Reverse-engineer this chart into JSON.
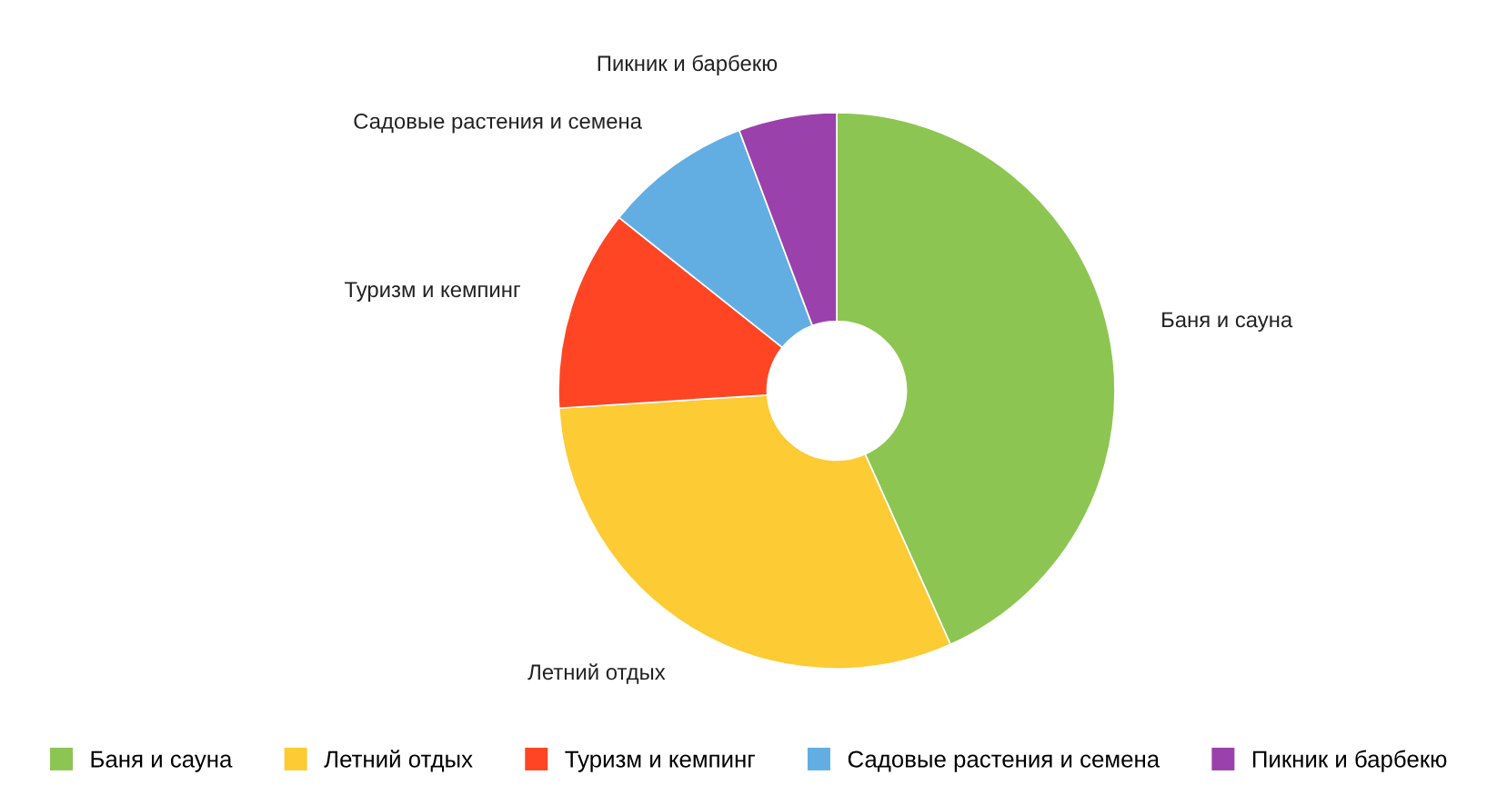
{
  "chart_data": {
    "type": "donut",
    "categories": [
      "Баня и сауна",
      "Летний отдых",
      "Туризм и кемпинг",
      "Садовые растения и семена",
      "Пикник и барбекю"
    ],
    "values": [
      43.3,
      30.7,
      11.7,
      8.6,
      5.7
    ],
    "colors": [
      "#8dc552",
      "#fdcb33",
      "#ff4524",
      "#62aee3",
      "#9a41ab"
    ],
    "legend": "bottom"
  }
}
